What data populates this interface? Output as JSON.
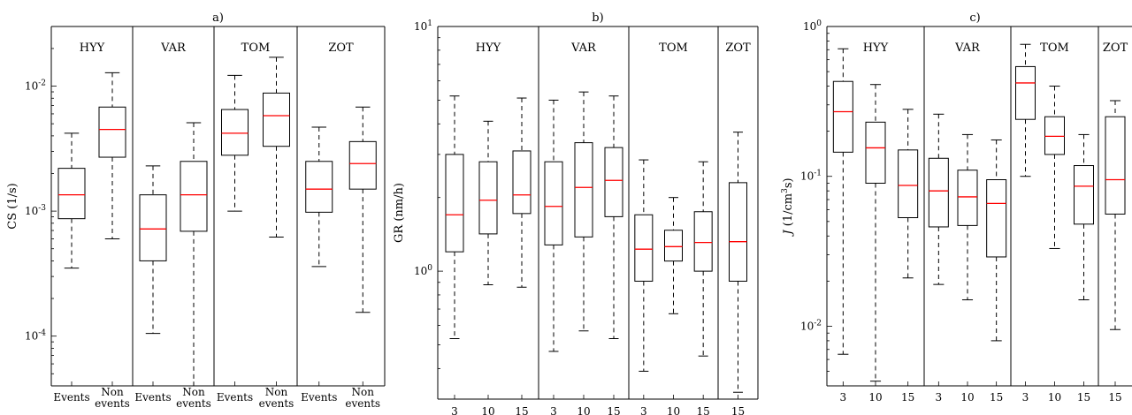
{
  "chart_data": [
    {
      "type": "box",
      "title": "a)",
      "ylabel": "CS (1/s)",
      "yscale": "log",
      "ylim": [
        4e-05,
        0.03
      ],
      "yticks": [
        {
          "value": 0.0001,
          "base": "10",
          "exp": "-4"
        },
        {
          "value": 0.001,
          "base": "10",
          "exp": "-3"
        },
        {
          "value": 0.01,
          "base": "10",
          "exp": "-2"
        }
      ],
      "groups": [
        {
          "label": "HYY",
          "boxes": [
            {
              "label": [
                "Events"
              ],
              "whisker_low": 0.00035,
              "q1": 0.00087,
              "median": 0.00135,
              "q3": 0.0022,
              "whisker_high": 0.0042
            },
            {
              "label": [
                "Non",
                "events"
              ],
              "whisker_low": 0.0006,
              "q1": 0.0027,
              "median": 0.0045,
              "q3": 0.0068,
              "whisker_high": 0.0128
            }
          ]
        },
        {
          "label": "VAR",
          "boxes": [
            {
              "label": [
                "Events"
              ],
              "whisker_low": 0.000105,
              "q1": 0.0004,
              "median": 0.00072,
              "q3": 0.00135,
              "whisker_high": 0.0023
            },
            {
              "label": [
                "Non",
                "events"
              ],
              "whisker_low": 4e-05,
              "q1": 0.00069,
              "median": 0.00135,
              "q3": 0.0025,
              "whisker_high": 0.0051
            }
          ]
        },
        {
          "label": "TOM",
          "boxes": [
            {
              "label": [
                "Events"
              ],
              "whisker_low": 0.001,
              "q1": 0.0028,
              "median": 0.0042,
              "q3": 0.0065,
              "whisker_high": 0.0122
            },
            {
              "label": [
                "Non",
                "events"
              ],
              "whisker_low": 0.00062,
              "q1": 0.0033,
              "median": 0.0058,
              "q3": 0.0088,
              "whisker_high": 0.017
            }
          ]
        },
        {
          "label": "ZOT",
          "boxes": [
            {
              "label": [
                "Events"
              ],
              "whisker_low": 0.00036,
              "q1": 0.00098,
              "median": 0.0015,
              "q3": 0.0025,
              "whisker_high": 0.0047
            },
            {
              "label": [
                "Non",
                "events"
              ],
              "whisker_low": 0.000155,
              "q1": 0.0015,
              "median": 0.0024,
              "q3": 0.0036,
              "whisker_high": 0.0068
            }
          ]
        }
      ]
    },
    {
      "type": "box",
      "title": "b)",
      "ylabel": "GR (nm/h)",
      "yscale": "log",
      "ylim": [
        0.3,
        10
      ],
      "yticks": [
        {
          "value": 1,
          "base": "10",
          "exp": "0"
        },
        {
          "value": 10,
          "base": "10",
          "exp": "1"
        }
      ],
      "groups": [
        {
          "label": "HYY",
          "boxes": [
            {
              "label": [
                "3"
              ],
              "whisker_low": 0.53,
              "q1": 1.2,
              "median": 1.7,
              "q3": 3.0,
              "whisker_high": 5.2
            },
            {
              "label": [
                "10"
              ],
              "whisker_low": 0.88,
              "q1": 1.42,
              "median": 1.95,
              "q3": 2.8,
              "whisker_high": 4.1
            },
            {
              "label": [
                "15"
              ],
              "whisker_low": 0.86,
              "q1": 1.72,
              "median": 2.05,
              "q3": 3.1,
              "whisker_high": 5.1
            }
          ]
        },
        {
          "label": "VAR",
          "boxes": [
            {
              "label": [
                "3"
              ],
              "whisker_low": 0.47,
              "q1": 1.28,
              "median": 1.84,
              "q3": 2.8,
              "whisker_high": 5.0
            },
            {
              "label": [
                "10"
              ],
              "whisker_low": 0.57,
              "q1": 1.38,
              "median": 2.2,
              "q3": 3.35,
              "whisker_high": 5.4
            },
            {
              "label": [
                "15"
              ],
              "whisker_low": 0.53,
              "q1": 1.67,
              "median": 2.35,
              "q3": 3.2,
              "whisker_high": 5.2
            }
          ]
        },
        {
          "label": "TOM",
          "boxes": [
            {
              "label": [
                "3"
              ],
              "whisker_low": 0.39,
              "q1": 0.91,
              "median": 1.23,
              "q3": 1.7,
              "whisker_high": 2.85
            },
            {
              "label": [
                "10"
              ],
              "whisker_low": 0.67,
              "q1": 1.1,
              "median": 1.26,
              "q3": 1.47,
              "whisker_high": 2.0
            },
            {
              "label": [
                "15"
              ],
              "whisker_low": 0.45,
              "q1": 1.0,
              "median": 1.31,
              "q3": 1.75,
              "whisker_high": 2.8
            }
          ]
        },
        {
          "label": "ZOT",
          "boxes": [
            {
              "label": [
                "15"
              ],
              "whisker_low": 0.32,
              "q1": 0.91,
              "median": 1.32,
              "q3": 2.3,
              "whisker_high": 3.7
            }
          ]
        }
      ]
    },
    {
      "type": "box",
      "title": "c)",
      "ylabel_italic": "J",
      "ylabel_unit": " (1/cm",
      "ylabel_sup": "3",
      "ylabel_end": "s)",
      "yscale": "log",
      "ylim": [
        0.004,
        1
      ],
      "yticks": [
        {
          "value": 0.01,
          "base": "10",
          "exp": "-2"
        },
        {
          "value": 0.1,
          "base": "10",
          "exp": "-1"
        },
        {
          "value": 1,
          "base": "10",
          "exp": "0"
        }
      ],
      "groups": [
        {
          "label": "HYY",
          "boxes": [
            {
              "label": [
                "3"
              ],
              "whisker_low": 0.0065,
              "q1": 0.145,
              "median": 0.27,
              "q3": 0.43,
              "whisker_high": 0.71
            },
            {
              "label": [
                "10"
              ],
              "whisker_low": 0.0043,
              "q1": 0.09,
              "median": 0.155,
              "q3": 0.23,
              "whisker_high": 0.41
            },
            {
              "label": [
                "15"
              ],
              "whisker_low": 0.021,
              "q1": 0.053,
              "median": 0.087,
              "q3": 0.15,
              "whisker_high": 0.28
            }
          ]
        },
        {
          "label": "VAR",
          "boxes": [
            {
              "label": [
                "3"
              ],
              "whisker_low": 0.019,
              "q1": 0.046,
              "median": 0.08,
              "q3": 0.132,
              "whisker_high": 0.26
            },
            {
              "label": [
                "10"
              ],
              "whisker_low": 0.015,
              "q1": 0.047,
              "median": 0.073,
              "q3": 0.11,
              "whisker_high": 0.19
            },
            {
              "label": [
                "15"
              ],
              "whisker_low": 0.008,
              "q1": 0.029,
              "median": 0.066,
              "q3": 0.095,
              "whisker_high": 0.175
            }
          ]
        },
        {
          "label": "TOM",
          "boxes": [
            {
              "label": [
                "3"
              ],
              "whisker_low": 0.1,
              "q1": 0.24,
              "median": 0.42,
              "q3": 0.54,
              "whisker_high": 0.76
            },
            {
              "label": [
                "10"
              ],
              "whisker_low": 0.033,
              "q1": 0.14,
              "median": 0.185,
              "q3": 0.25,
              "whisker_high": 0.4
            },
            {
              "label": [
                "15"
              ],
              "whisker_low": 0.015,
              "q1": 0.048,
              "median": 0.086,
              "q3": 0.118,
              "whisker_high": 0.19
            }
          ]
        },
        {
          "label": "ZOT",
          "boxes": [
            {
              "label": [
                "15"
              ],
              "whisker_low": 0.0095,
              "q1": 0.056,
              "median": 0.095,
              "q3": 0.25,
              "whisker_high": 0.32
            }
          ]
        }
      ]
    }
  ],
  "colors": {
    "box": "#000000",
    "median": "#ff0000",
    "axis": "#000000"
  }
}
